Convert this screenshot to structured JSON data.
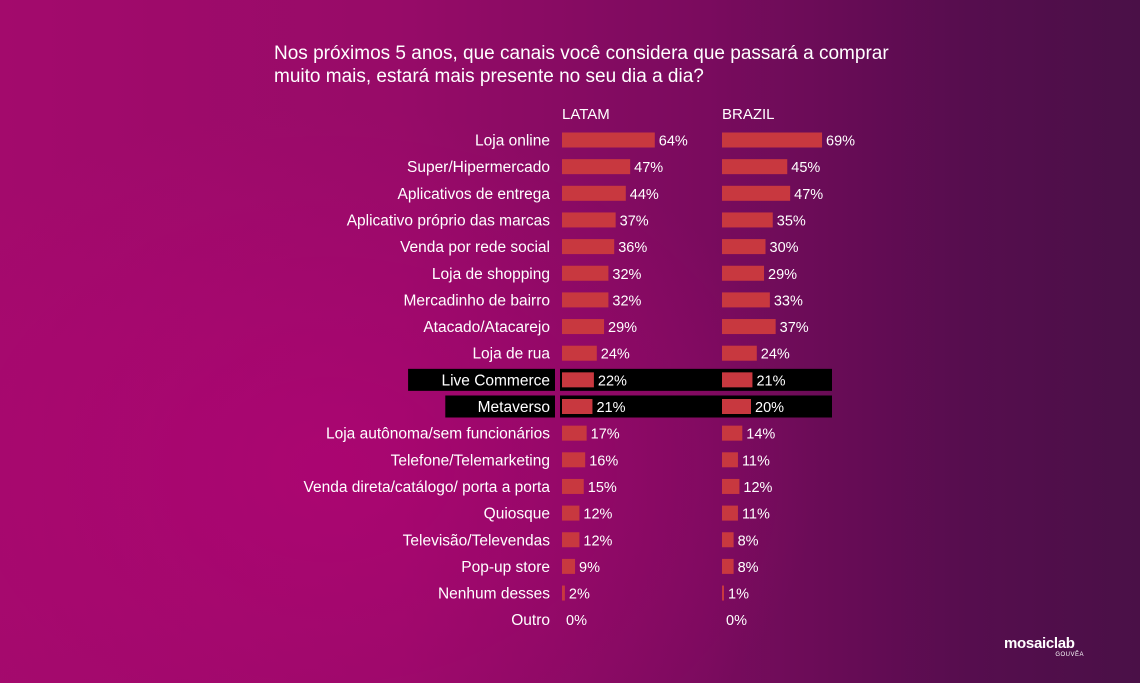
{
  "chart_data": {
    "type": "bar",
    "orientation": "horizontal",
    "title": "Nos próximos 5 anos, que canais você considera que passará a comprar muito mais, estará mais presente no seu dia a dia?",
    "categories": [
      "Loja online",
      "Super/Hipermercado",
      "Aplicativos de entrega",
      "Aplicativo próprio das marcas",
      "Venda por rede social",
      "Loja de shopping",
      "Mercadinho de bairro",
      "Atacado/Atacarejo",
      "Loja de rua",
      "Live Commerce",
      "Metaverso",
      "Loja autônoma/sem funcionários",
      "Telefone/Telemarketing",
      "Venda direta/catálogo/ porta a porta",
      "Quiosque",
      "Televisão/Televendas",
      "Pop-up store",
      "Nenhum desses",
      "Outro"
    ],
    "series": [
      {
        "name": "LATAM",
        "values": [
          64,
          47,
          44,
          37,
          36,
          32,
          32,
          29,
          24,
          22,
          21,
          17,
          16,
          15,
          12,
          12,
          9,
          2,
          0
        ]
      },
      {
        "name": "BRAZIL",
        "values": [
          69,
          45,
          47,
          35,
          30,
          29,
          33,
          37,
          24,
          21,
          20,
          14,
          11,
          12,
          11,
          8,
          8,
          1,
          0
        ]
      }
    ],
    "value_suffix": "%",
    "highlighted_categories": [
      "Live Commerce",
      "Metaverso"
    ],
    "bar_color": "#c8383f",
    "highlight_color": "#000000",
    "grid": false,
    "legend": "top"
  },
  "logo": {
    "main": "mosaiclab",
    "sub": "GOUVÊA"
  }
}
